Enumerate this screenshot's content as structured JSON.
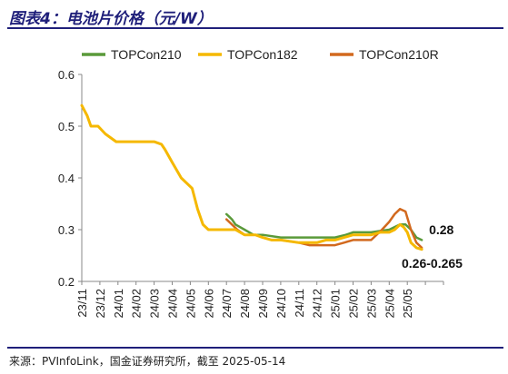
{
  "title": "图表4：电池片价格（元/W）",
  "source": "来源：PVInfoLink，国金证券研究所，截至 2025-05-14",
  "chart_data": {
    "type": "line",
    "title": "图表4：电池片价格（元/W）",
    "xlabel": "",
    "ylabel": "",
    "ylim": [
      0.2,
      0.6
    ],
    "yticks": [
      0.2,
      0.3,
      0.4,
      0.5,
      0.6
    ],
    "ytick_labels": [
      "0.2",
      "0.3",
      "0.4",
      "0.5",
      "0.6"
    ],
    "xlim": [
      0,
      20
    ],
    "xticks": [
      0,
      1,
      2,
      3,
      4,
      5,
      6,
      7,
      8,
      9,
      10,
      11,
      12,
      13,
      14,
      15,
      16,
      17,
      18,
      19,
      20
    ],
    "xtick_labels": [
      "23/11",
      "23/12",
      "24/01",
      "24/02",
      "24/03",
      "24/04",
      "24/05",
      "24/06",
      "24/07",
      "24/08",
      "24/09",
      "24/10",
      "24/11",
      "24/12",
      "25/01",
      "25/02",
      "25/03",
      "25/04",
      "25/05",
      "",
      ""
    ],
    "legend_position": "top",
    "grid": false,
    "series": [
      {
        "name": "TOPCon210",
        "color": "#5a9a3a",
        "x": [
          8.0,
          8.3,
          8.5,
          9.0,
          9.5,
          10.0,
          11.0,
          12.0,
          13.0,
          14.0,
          14.6,
          15.0,
          16.0,
          17.0,
          17.6,
          17.9,
          18.2,
          18.5,
          18.8
        ],
        "y": [
          0.33,
          0.32,
          0.31,
          0.3,
          0.29,
          0.29,
          0.285,
          0.285,
          0.285,
          0.285,
          0.29,
          0.295,
          0.295,
          0.3,
          0.31,
          0.31,
          0.3,
          0.285,
          0.28
        ]
      },
      {
        "name": "TOPCon182",
        "color": "#f5b800",
        "x": [
          0.0,
          0.3,
          0.5,
          0.9,
          1.3,
          1.9,
          3.0,
          4.0,
          4.4,
          4.6,
          5.0,
          5.5,
          6.1,
          6.4,
          6.7,
          7.0,
          7.5,
          8.0,
          8.5,
          9.0,
          9.6,
          10.0,
          10.5,
          11.0,
          12.0,
          12.5,
          13.0,
          13.5,
          14.0,
          14.5,
          15.0,
          15.5,
          16.0,
          16.5,
          17.0,
          17.3,
          17.6,
          17.8,
          18.0,
          18.2,
          18.5,
          18.8
        ],
        "y": [
          0.54,
          0.52,
          0.5,
          0.5,
          0.485,
          0.47,
          0.47,
          0.47,
          0.465,
          0.455,
          0.43,
          0.4,
          0.38,
          0.34,
          0.31,
          0.3,
          0.3,
          0.3,
          0.3,
          0.29,
          0.29,
          0.285,
          0.28,
          0.28,
          0.275,
          0.275,
          0.275,
          0.28,
          0.28,
          0.285,
          0.29,
          0.29,
          0.29,
          0.295,
          0.295,
          0.3,
          0.31,
          0.305,
          0.295,
          0.275,
          0.265,
          0.262
        ]
      },
      {
        "name": "TOPCon210R",
        "color": "#d2691e",
        "x": [
          8.0,
          8.3,
          8.6,
          9.0,
          9.6,
          10.0,
          10.5,
          11.0,
          12.0,
          12.6,
          13.0,
          14.0,
          14.5,
          15.0,
          15.5,
          16.0,
          16.3,
          16.6,
          17.0,
          17.3,
          17.6,
          17.9,
          18.2,
          18.5,
          18.8
        ],
        "y": [
          0.32,
          0.31,
          0.3,
          0.29,
          0.29,
          0.285,
          0.28,
          0.28,
          0.275,
          0.27,
          0.27,
          0.27,
          0.275,
          0.28,
          0.28,
          0.28,
          0.29,
          0.3,
          0.315,
          0.33,
          0.34,
          0.335,
          0.3,
          0.275,
          0.265
        ]
      }
    ],
    "annotations": [
      "0.28",
      "0.26-0.265"
    ]
  }
}
